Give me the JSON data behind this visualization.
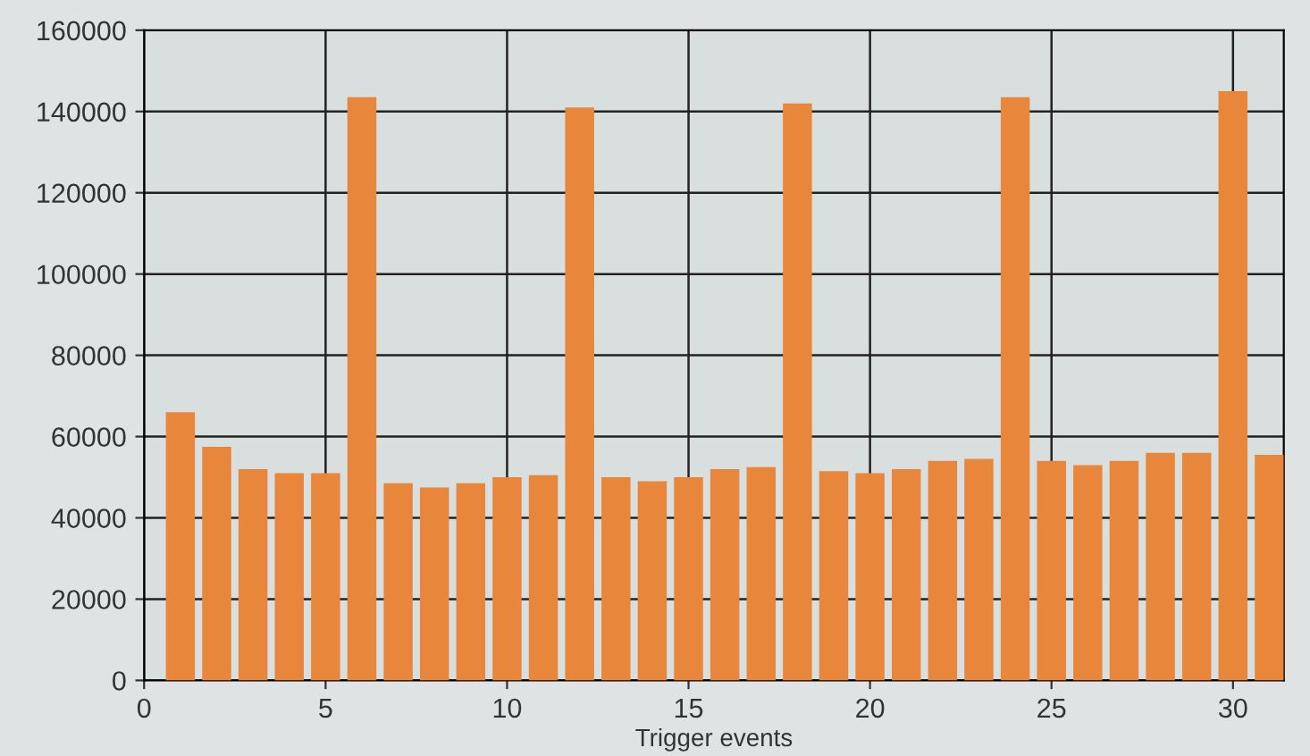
{
  "chart_data": {
    "type": "bar",
    "xlabel": "Trigger events",
    "x": [
      1,
      2,
      3,
      4,
      5,
      6,
      7,
      8,
      9,
      10,
      11,
      12,
      13,
      14,
      15,
      16,
      17,
      18,
      19,
      20,
      21,
      22,
      23,
      24,
      25,
      26,
      27,
      28,
      29,
      30,
      31
    ],
    "values": [
      66000,
      57500,
      52000,
      51000,
      51000,
      143500,
      48500,
      47500,
      48500,
      50000,
      50500,
      141000,
      50000,
      49000,
      50000,
      52000,
      52500,
      142000,
      51500,
      51000,
      52000,
      54000,
      54500,
      143500,
      54000,
      53000,
      54000,
      56000,
      56000,
      145000,
      55500
    ],
    "color": "#e8873c",
    "xlim": [
      0,
      31.4
    ],
    "xticks": [
      0,
      5,
      10,
      15,
      20,
      25,
      30
    ],
    "ylim": [
      0,
      160000
    ],
    "yticks": [
      0,
      20000,
      40000,
      60000,
      80000,
      100000,
      120000,
      140000,
      160000
    ],
    "grid": true
  }
}
